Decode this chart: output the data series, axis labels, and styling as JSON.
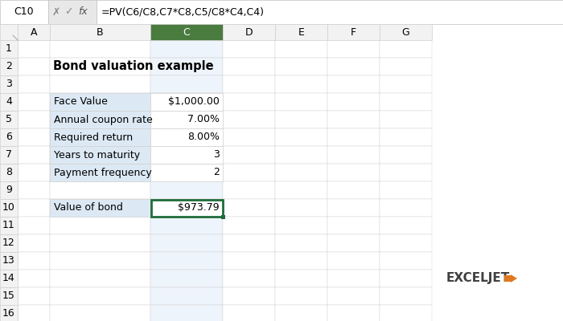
{
  "title": "Bond valuation example",
  "formula_bar_cell": "C10",
  "formula_bar_formula": "=PV(C6/C8,C7*C8,C5/C8*C4,C4)",
  "col_headers": [
    "A",
    "B",
    "C",
    "D",
    "E",
    "F",
    "G"
  ],
  "row_headers": [
    "1",
    "2",
    "3",
    "4",
    "5",
    "6",
    "7",
    "8",
    "9",
    "10",
    "11",
    "12",
    "13",
    "14",
    "15",
    "16"
  ],
  "table_rows": [
    {
      "label": "Face Value",
      "value": "$1,000.00"
    },
    {
      "label": "Annual coupon rate",
      "value": "7.00%"
    },
    {
      "label": "Required return",
      "value": "8.00%"
    },
    {
      "label": "Years to maturity",
      "value": "3"
    },
    {
      "label": "Payment frequency",
      "value": "2"
    }
  ],
  "result_label": "Value of bond",
  "result_value": "$973.79",
  "bg_color": "#ffffff",
  "grid_line_color": "#d0d0d0",
  "header_bg": "#f2f2f2",
  "table_label_bg": "#dce9f5",
  "table_value_bg": "#ffffff",
  "active_col_bg": "#c6d9f0",
  "active_col_header_bg": "#4a7b3f",
  "active_col_header_fg": "#ffffff",
  "result_border_color": "#1f6b3a",
  "formula_bar_bg": "#ffffff",
  "formula_bar_border": "#c0c0c0",
  "col_header_fg": "#000000",
  "row_header_fg": "#000000",
  "row_header_bg": "#f2f2f2",
  "exceljet_text": "EXCELJET",
  "exceljet_color_main": "#404040",
  "exceljet_color_accent": "#e07820",
  "title_fontsize": 10.5,
  "cell_fontsize": 9,
  "header_fontsize": 9
}
